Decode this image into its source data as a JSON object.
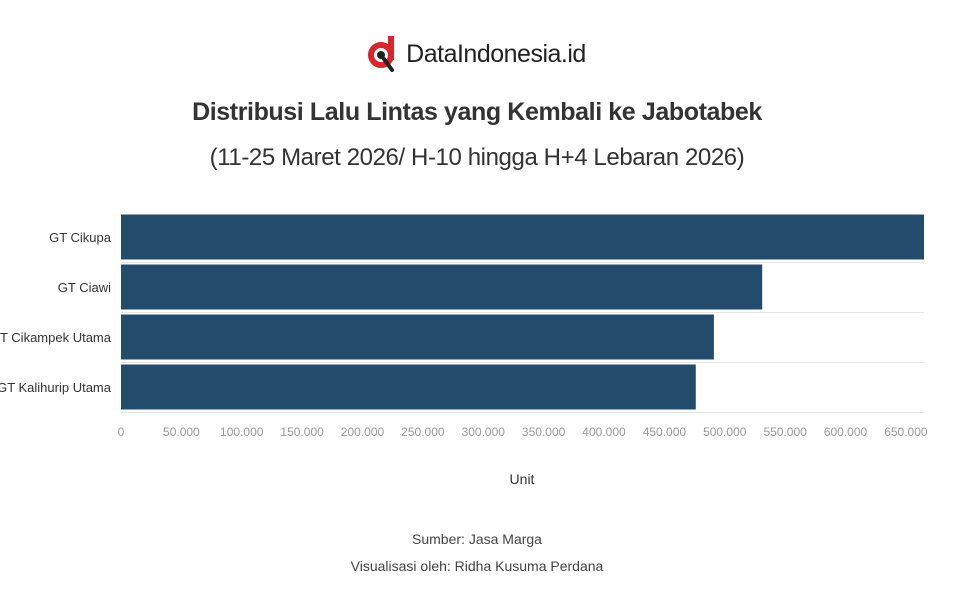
{
  "header": {
    "brand_name": "DataIndonesia.id",
    "logo_icon": "dataindonesia-logo-icon",
    "title": "Distribusi Lalu Lintas yang Kembali ke Jabotabek",
    "subtitle": "(11-25 Maret 2026/ H-10 hingga H+4 Lebaran 2026)"
  },
  "colors": {
    "bar": "#234b6c",
    "brand_red": "#d7262c",
    "grid": "#e6e6e6",
    "tick_label": "#999999"
  },
  "chart_data": {
    "type": "bar",
    "orientation": "horizontal",
    "categories": [
      "GT Cikupa",
      "GT Ciawi",
      "GT Cikampek Utama",
      "GT Kalihurip Utama"
    ],
    "values": [
      665000,
      531000,
      491000,
      476000
    ],
    "xlabel": "Unit",
    "ylabel": "",
    "xlim": [
      0,
      665000
    ],
    "xticks": [
      0,
      50000,
      100000,
      150000,
      200000,
      250000,
      300000,
      350000,
      400000,
      450000,
      500000,
      550000,
      600000,
      650000
    ],
    "xtick_labels": [
      "0",
      "50.000",
      "100.000",
      "150.000",
      "200.000",
      "250.000",
      "300.000",
      "350.000",
      "400.000",
      "450.000",
      "500.000",
      "550.000",
      "600.000",
      "650.000"
    ],
    "grid": true
  },
  "footer": {
    "source": "Sumber: Jasa Marga",
    "visualization": "Visualisasi oleh: Ridha Kusuma Perdana"
  }
}
